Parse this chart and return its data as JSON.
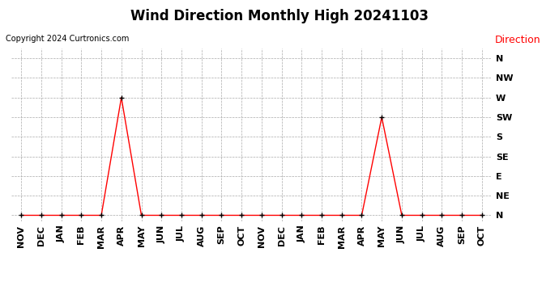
{
  "title": "Wind Direction Monthly High 20241103",
  "copyright": "Copyright 2024 Curtronics.com",
  "legend_label": "Direction",
  "legend_color": "#ff0000",
  "x_labels": [
    "NOV",
    "DEC",
    "JAN",
    "FEB",
    "MAR",
    "APR",
    "MAY",
    "JUN",
    "JUL",
    "AUG",
    "SEP",
    "OCT",
    "NOV",
    "DEC",
    "JAN",
    "FEB",
    "MAR",
    "APR",
    "MAY",
    "JUN",
    "JUL",
    "AUG",
    "SEP",
    "OCT"
  ],
  "y_labels": [
    "N",
    "NE",
    "E",
    "SE",
    "S",
    "SW",
    "W",
    "NW",
    "N"
  ],
  "y_values": [
    0,
    1,
    2,
    3,
    4,
    5,
    6,
    7,
    8
  ],
  "data_values": [
    0,
    0,
    0,
    0,
    0,
    6,
    0,
    0,
    0,
    0,
    0,
    0,
    0,
    0,
    0,
    0,
    0,
    0,
    5,
    0,
    0,
    0,
    0,
    0
  ],
  "line_color": "#ff0000",
  "marker_color": "#000000",
  "marker_size": 4,
  "grid_color": "#aaaaaa",
  "bg_color": "#ffffff",
  "title_fontsize": 12,
  "copyright_fontsize": 7,
  "direction_fontsize": 9,
  "axis_fontsize": 8,
  "ylim": [
    -0.3,
    8.5
  ]
}
